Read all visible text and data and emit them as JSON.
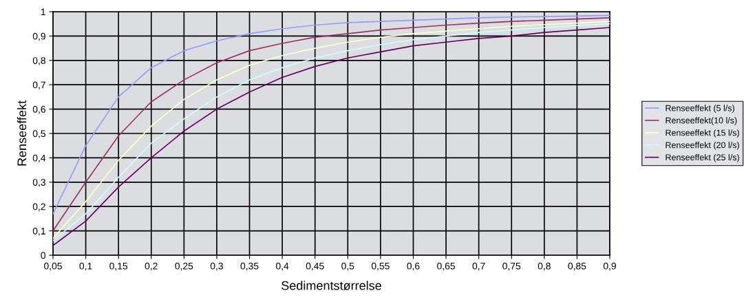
{
  "chart_data": {
    "type": "line",
    "xlabel": "Sedimentstørrelse",
    "ylabel": "Renseeffekt",
    "categories": [
      "0,05",
      "0,1",
      "0,15",
      "0,2",
      "0,25",
      "0,3",
      "0,35",
      "0,4",
      "0,45",
      "0,5",
      "0,55",
      "0,6",
      "0,65",
      "0,7",
      "0,75",
      "0,8",
      "0,85",
      "0,9"
    ],
    "series": [
      {
        "name": "Renseeffekt (5 l/s)",
        "color": "#9999ff",
        "values": [
          0.17,
          0.45,
          0.65,
          0.77,
          0.84,
          0.88,
          0.91,
          0.93,
          0.945,
          0.955,
          0.96,
          0.965,
          0.97,
          0.975,
          0.978,
          0.98,
          0.982,
          0.985
        ]
      },
      {
        "name": "Renseeffekt(10 l/s)",
        "color": "#993366",
        "values": [
          0.1,
          0.3,
          0.49,
          0.63,
          0.72,
          0.79,
          0.84,
          0.87,
          0.895,
          0.91,
          0.925,
          0.935,
          0.945,
          0.953,
          0.96,
          0.965,
          0.97,
          0.975
        ]
      },
      {
        "name": "Renseeffekt (15 l/s)",
        "color": "#ffffcc",
        "values": [
          0.07,
          0.22,
          0.39,
          0.53,
          0.64,
          0.72,
          0.78,
          0.82,
          0.85,
          0.875,
          0.895,
          0.91,
          0.92,
          0.93,
          0.94,
          0.947,
          0.953,
          0.96
        ]
      },
      {
        "name": "Renseeffekt (20 l/s)",
        "color": "#ccffff",
        "values": [
          0.06,
          0.17,
          0.32,
          0.46,
          0.56,
          0.65,
          0.72,
          0.77,
          0.81,
          0.84,
          0.865,
          0.885,
          0.9,
          0.915,
          0.925,
          0.935,
          0.943,
          0.95
        ]
      },
      {
        "name": "Renseeffekt (25 l/s)",
        "color": "#660066",
        "values": [
          0.04,
          0.14,
          0.28,
          0.4,
          0.51,
          0.6,
          0.67,
          0.73,
          0.775,
          0.81,
          0.835,
          0.86,
          0.875,
          0.89,
          0.9,
          0.915,
          0.925,
          0.935
        ]
      }
    ],
    "ylim": [
      0,
      1
    ],
    "yticks": [
      0,
      {
        "value": 0.1,
        "label": "0,1"
      },
      {
        "value": 0.2,
        "label": "0,2"
      },
      {
        "value": 0.3,
        "label": "0,3"
      },
      {
        "value": 0.4,
        "label": "0,4"
      },
      {
        "value": 0.5,
        "label": "0,5"
      },
      {
        "value": 0.6,
        "label": "0,6"
      },
      {
        "value": 0.7,
        "label": "0,7"
      },
      {
        "value": 0.8,
        "label": "0,8"
      },
      {
        "value": 0.9,
        "label": "0,9"
      },
      1
    ],
    "grid": true,
    "legend": "right",
    "marker": "none",
    "line_style": "solid"
  }
}
